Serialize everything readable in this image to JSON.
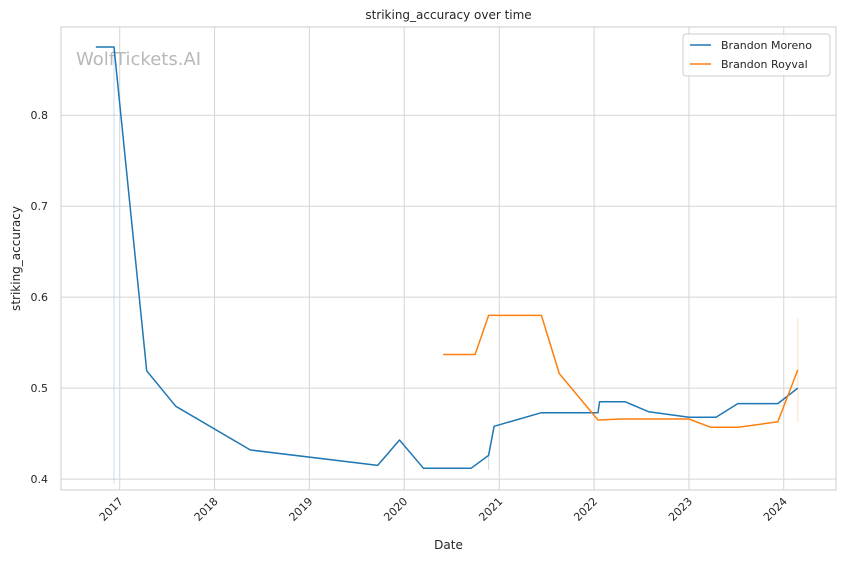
{
  "chart_data": {
    "type": "line",
    "title": "striking_accuracy over time",
    "xlabel": "Date",
    "ylabel": "striking_accuracy",
    "watermark": "WolfTickets.AI",
    "x_axis_type": "date",
    "xlim": [
      "2016-05-20",
      "2024-07-20"
    ],
    "ylim": [
      0.388,
      0.897
    ],
    "x_ticks": [
      "2017",
      "2018",
      "2019",
      "2020",
      "2021",
      "2022",
      "2023",
      "2024"
    ],
    "y_ticks": [
      "0.4",
      "0.5",
      "0.6",
      "0.7",
      "0.8"
    ],
    "grid": true,
    "legend_position": "top-right",
    "series": [
      {
        "name": "Brandon Moreno",
        "color": "#1f77b4",
        "points": [
          [
            "2016-10-01",
            0.875
          ],
          [
            "2016-11-20",
            0.875
          ],
          [
            "2016-12-10",
            0.875
          ],
          [
            "2017-04-15",
            0.519
          ],
          [
            "2017-08-05",
            0.48
          ],
          [
            "2018-05-19",
            0.432
          ],
          [
            "2019-09-21",
            0.415
          ],
          [
            "2019-12-14",
            0.443
          ],
          [
            "2020-03-15",
            0.412
          ],
          [
            "2020-06-15",
            0.412
          ],
          [
            "2020-09-15",
            0.412
          ],
          [
            "2020-11-21",
            0.426
          ],
          [
            "2020-12-12",
            0.458
          ],
          [
            "2021-06-12",
            0.473
          ],
          [
            "2022-01-01",
            0.473
          ],
          [
            "2022-01-16",
            0.473
          ],
          [
            "2022-01-22",
            0.485
          ],
          [
            "2022-05-01",
            0.485
          ],
          [
            "2022-07-30",
            0.474
          ],
          [
            "2023-01-01",
            0.468
          ],
          [
            "2023-04-15",
            0.468
          ],
          [
            "2023-07-08",
            0.483
          ],
          [
            "2023-12-09",
            0.483
          ],
          [
            "2024-02-24",
            0.5
          ]
        ]
      },
      {
        "name": "Brandon Royval",
        "color": "#ff7f0e",
        "points": [
          [
            "2020-05-30",
            0.537
          ],
          [
            "2020-09-30",
            0.537
          ],
          [
            "2020-11-21",
            0.58
          ],
          [
            "2021-06-12",
            0.58
          ],
          [
            "2021-08-20",
            0.516
          ],
          [
            "2022-01-16",
            0.465
          ],
          [
            "2022-04-15",
            0.466
          ],
          [
            "2023-01-01",
            0.466
          ],
          [
            "2023-03-25",
            0.457
          ],
          [
            "2023-07-10",
            0.457
          ],
          [
            "2023-12-09",
            0.463
          ],
          [
            "2024-02-24",
            0.52
          ]
        ]
      }
    ],
    "error_bars": [
      {
        "series": "Brandon Moreno",
        "x": "2016-12-10",
        "low": 0.395,
        "high": 0.875
      },
      {
        "series": "Brandon Moreno",
        "x": "2020-11-21",
        "low": 0.41,
        "high": 0.43
      },
      {
        "series": "Brandon Royval",
        "x": "2024-02-24",
        "low": 0.462,
        "high": 0.577
      }
    ]
  }
}
